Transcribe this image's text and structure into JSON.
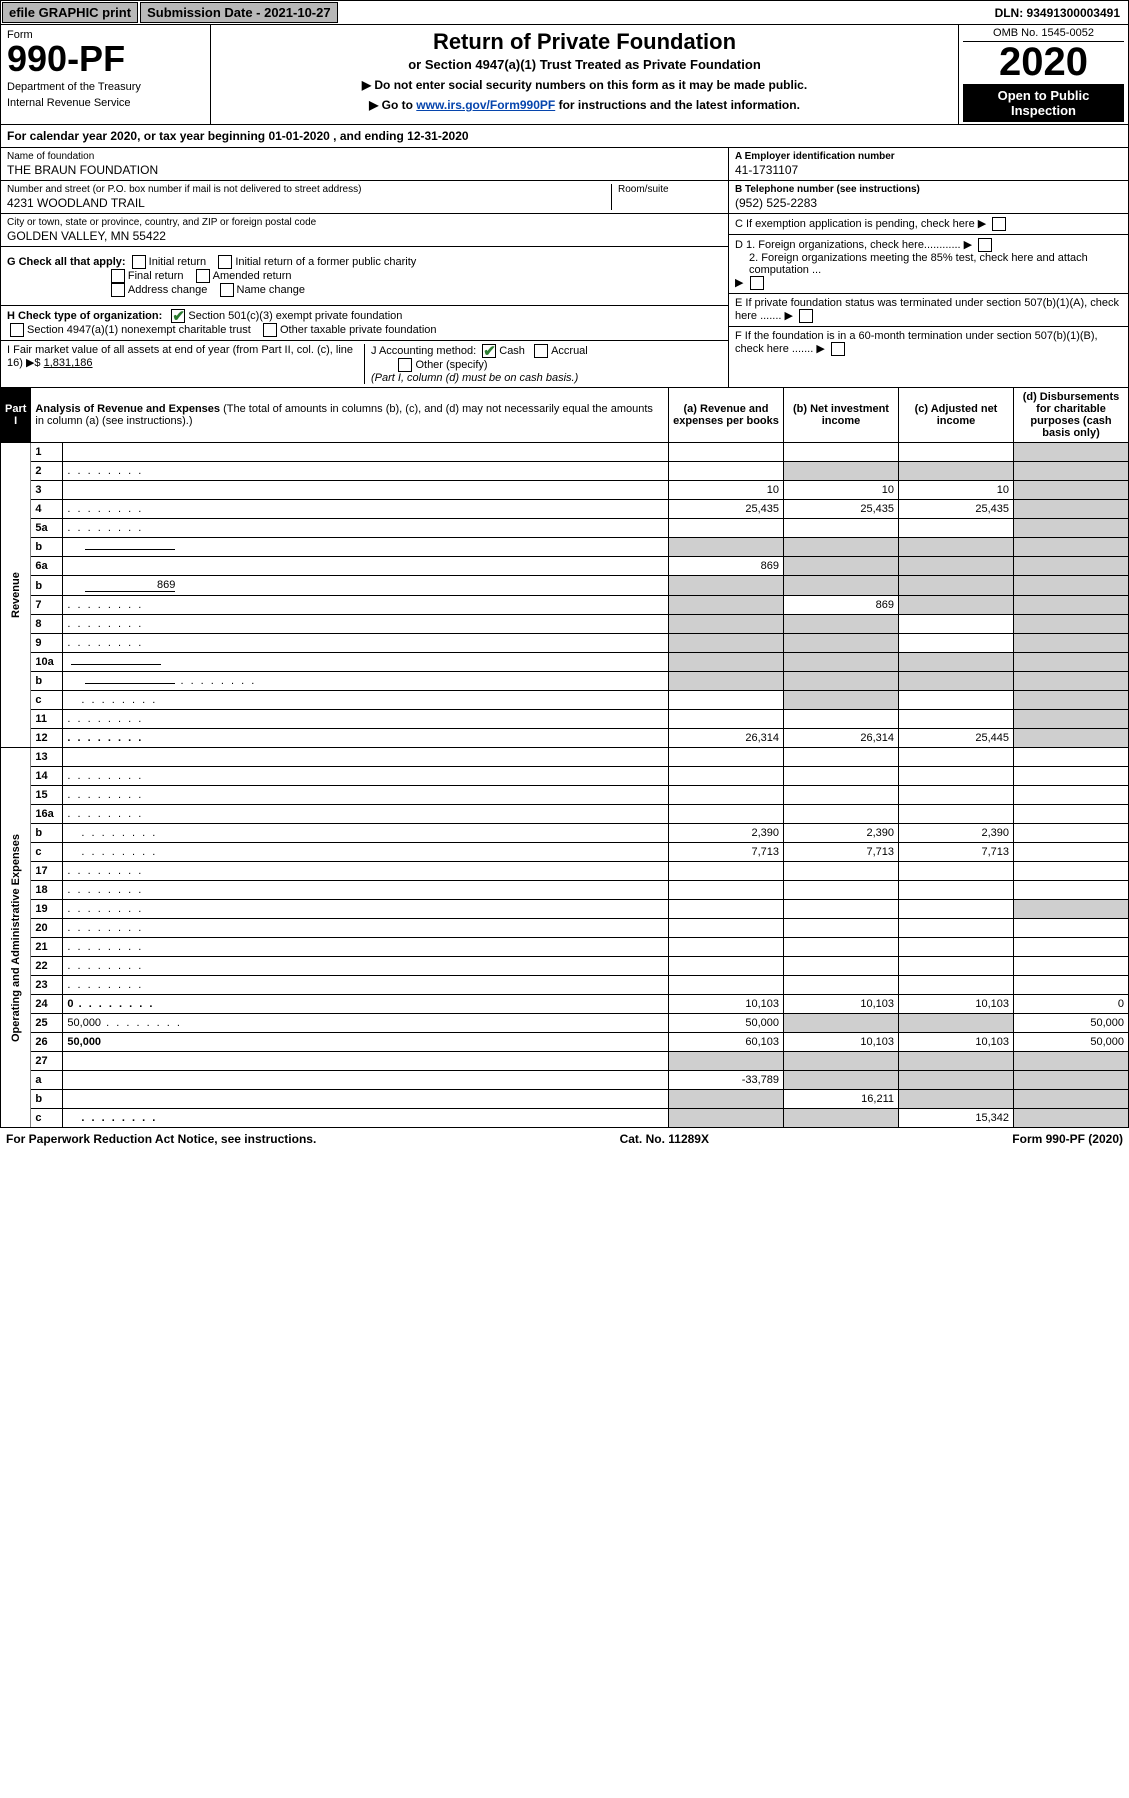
{
  "topbar": {
    "efile": "efile GRAPHIC print",
    "submission": "Submission Date - 2021-10-27",
    "dln": "DLN: 93491300003491"
  },
  "header": {
    "form_label": "Form",
    "form_number": "990-PF",
    "dept1": "Department of the Treasury",
    "dept2": "Internal Revenue Service",
    "title": "Return of Private Foundation",
    "subtitle": "or Section 4947(a)(1) Trust Treated as Private Foundation",
    "instr1": "▶ Do not enter social security numbers on this form as it may be made public.",
    "instr2_prefix": "▶ Go to ",
    "instr2_link": "www.irs.gov/Form990PF",
    "instr2_suffix": " for instructions and the latest information.",
    "omb": "OMB No. 1545-0052",
    "year": "2020",
    "open": "Open to Public Inspection"
  },
  "calyear": "For calendar year 2020, or tax year beginning 01-01-2020                  , and ending 12-31-2020",
  "info": {
    "name_label": "Name of foundation",
    "name": "THE BRAUN FOUNDATION",
    "addr_label": "Number and street (or P.O. box number if mail is not delivered to street address)",
    "addr": "4231 WOODLAND TRAIL",
    "room_label": "Room/suite",
    "city_label": "City or town, state or province, country, and ZIP or foreign postal code",
    "city": "GOLDEN VALLEY, MN  55422",
    "ein_label": "A Employer identification number",
    "ein": "41-1731107",
    "tel_label": "B Telephone number (see instructions)",
    "tel": "(952) 525-2283",
    "c_label": "C If exemption application is pending, check here",
    "d1": "D 1. Foreign organizations, check here............",
    "d2": "2. Foreign organizations meeting the 85% test, check here and attach computation ...",
    "e_label": "E  If private foundation status was terminated under section 507(b)(1)(A), check here .......",
    "f_label": "F  If the foundation is in a 60-month termination under section 507(b)(1)(B), check here .......",
    "g_label": "G Check all that apply:",
    "g_opts": [
      "Initial return",
      "Initial return of a former public charity",
      "Final return",
      "Amended return",
      "Address change",
      "Name change"
    ],
    "h_label": "H Check type of organization:",
    "h_opt1": "Section 501(c)(3) exempt private foundation",
    "h_opt2": "Section 4947(a)(1) nonexempt charitable trust",
    "h_opt3": "Other taxable private foundation",
    "i_label": "I Fair market value of all assets at end of year (from Part II, col. (c), line 16) ▶$ ",
    "i_val": "1,831,186",
    "j_label": "J Accounting method:",
    "j_cash": "Cash",
    "j_accrual": "Accrual",
    "j_other": "Other (specify)",
    "j_note": "(Part I, column (d) must be on cash basis.)"
  },
  "part1": {
    "label": "Part I",
    "title": "Analysis of Revenue and Expenses",
    "note": " (The total of amounts in columns (b), (c), and (d) may not necessarily equal the amounts in column (a) (see instructions).)",
    "col_a": "(a) Revenue and expenses per books",
    "col_b": "(b) Net investment income",
    "col_c": "(c) Adjusted net income",
    "col_d": "(d) Disbursements for charitable purposes (cash basis only)",
    "side_rev": "Revenue",
    "side_exp": "Operating and Administrative Expenses"
  },
  "rows": [
    {
      "n": "1",
      "d": "",
      "a": "",
      "b": "",
      "c": "",
      "bg": false,
      "cg": false,
      "dg": true
    },
    {
      "n": "2",
      "d": "",
      "a": "",
      "b": "",
      "c": "",
      "bg": true,
      "cg": true,
      "dg": true,
      "dots": true
    },
    {
      "n": "3",
      "d": "",
      "a": "10",
      "b": "10",
      "c": "10",
      "dg": true
    },
    {
      "n": "4",
      "d": "",
      "a": "25,435",
      "b": "25,435",
      "c": "25,435",
      "dg": true,
      "dots": true
    },
    {
      "n": "5a",
      "d": "",
      "a": "",
      "b": "",
      "c": "",
      "dg": true,
      "dots": true
    },
    {
      "n": "b",
      "d": "",
      "a": "",
      "b": "",
      "c": "",
      "ag": true,
      "bg": true,
      "cg": true,
      "dg": true,
      "indent": true,
      "inline": true
    },
    {
      "n": "6a",
      "d": "",
      "a": "869",
      "b": "",
      "c": "",
      "bg": true,
      "cg": true,
      "dg": true
    },
    {
      "n": "b",
      "d": "",
      "a": "",
      "b": "",
      "c": "",
      "ag": true,
      "bg": true,
      "cg": true,
      "dg": true,
      "indent": true,
      "inline": true,
      "inline_val": "869"
    },
    {
      "n": "7",
      "d": "",
      "a": "",
      "b": "869",
      "c": "",
      "ag": true,
      "cg": true,
      "dg": true,
      "dots": true
    },
    {
      "n": "8",
      "d": "",
      "a": "",
      "b": "",
      "c": "",
      "ag": true,
      "bg": true,
      "dg": true,
      "dots": true
    },
    {
      "n": "9",
      "d": "",
      "a": "",
      "b": "",
      "c": "",
      "ag": true,
      "bg": true,
      "dg": true,
      "dots": true
    },
    {
      "n": "10a",
      "d": "",
      "a": "",
      "b": "",
      "c": "",
      "ag": true,
      "bg": true,
      "cg": true,
      "dg": true,
      "inline": true
    },
    {
      "n": "b",
      "d": "",
      "a": "",
      "b": "",
      "c": "",
      "ag": true,
      "bg": true,
      "cg": true,
      "dg": true,
      "indent": true,
      "inline": true,
      "dots": true
    },
    {
      "n": "c",
      "d": "",
      "a": "",
      "b": "",
      "c": "",
      "bg": true,
      "dg": true,
      "indent": true,
      "dots": true
    },
    {
      "n": "11",
      "d": "",
      "a": "",
      "b": "",
      "c": "",
      "dg": true,
      "dots": true
    },
    {
      "n": "12",
      "d": "",
      "a": "26,314",
      "b": "26,314",
      "c": "25,445",
      "dg": true,
      "bold": true,
      "dots": true
    },
    {
      "n": "13",
      "d": "",
      "a": "",
      "b": "",
      "c": ""
    },
    {
      "n": "14",
      "d": "",
      "a": "",
      "b": "",
      "c": "",
      "dots": true
    },
    {
      "n": "15",
      "d": "",
      "a": "",
      "b": "",
      "c": "",
      "dots": true
    },
    {
      "n": "16a",
      "d": "",
      "a": "",
      "b": "",
      "c": "",
      "dots": true
    },
    {
      "n": "b",
      "d": "",
      "a": "2,390",
      "b": "2,390",
      "c": "2,390",
      "indent": true,
      "dots": true
    },
    {
      "n": "c",
      "d": "",
      "a": "7,713",
      "b": "7,713",
      "c": "7,713",
      "indent": true,
      "dots": true
    },
    {
      "n": "17",
      "d": "",
      "a": "",
      "b": "",
      "c": "",
      "dots": true
    },
    {
      "n": "18",
      "d": "",
      "a": "",
      "b": "",
      "c": "",
      "dots": true
    },
    {
      "n": "19",
      "d": "",
      "a": "",
      "b": "",
      "c": "",
      "dg": true,
      "dots": true
    },
    {
      "n": "20",
      "d": "",
      "a": "",
      "b": "",
      "c": "",
      "dots": true
    },
    {
      "n": "21",
      "d": "",
      "a": "",
      "b": "",
      "c": "",
      "dots": true
    },
    {
      "n": "22",
      "d": "",
      "a": "",
      "b": "",
      "c": "",
      "dots": true
    },
    {
      "n": "23",
      "d": "",
      "a": "",
      "b": "",
      "c": "",
      "dots": true
    },
    {
      "n": "24",
      "d": "0",
      "a": "10,103",
      "b": "10,103",
      "c": "10,103",
      "bold": true,
      "dots": true
    },
    {
      "n": "25",
      "d": "50,000",
      "a": "50,000",
      "b": "",
      "c": "",
      "bg": true,
      "cg": true,
      "dots": true
    },
    {
      "n": "26",
      "d": "50,000",
      "a": "60,103",
      "b": "10,103",
      "c": "10,103",
      "bold": true
    },
    {
      "n": "27",
      "d": "",
      "a": "",
      "b": "",
      "c": "",
      "ag": true,
      "bg": true,
      "cg": true,
      "dg": true
    },
    {
      "n": "a",
      "d": "",
      "a": "-33,789",
      "b": "",
      "c": "",
      "bg": true,
      "cg": true,
      "dg": true,
      "indent": true,
      "bold": true
    },
    {
      "n": "b",
      "d": "",
      "a": "",
      "b": "16,211",
      "c": "",
      "ag": true,
      "cg": true,
      "dg": true,
      "indent": true,
      "bold": true
    },
    {
      "n": "c",
      "d": "",
      "a": "",
      "b": "",
      "c": "15,342",
      "ag": true,
      "bg": true,
      "dg": true,
      "indent": true,
      "bold": true,
      "dots": true
    }
  ],
  "footer": {
    "left": "For Paperwork Reduction Act Notice, see instructions.",
    "mid": "Cat. No. 11289X",
    "right": "Form 990-PF (2020)"
  }
}
